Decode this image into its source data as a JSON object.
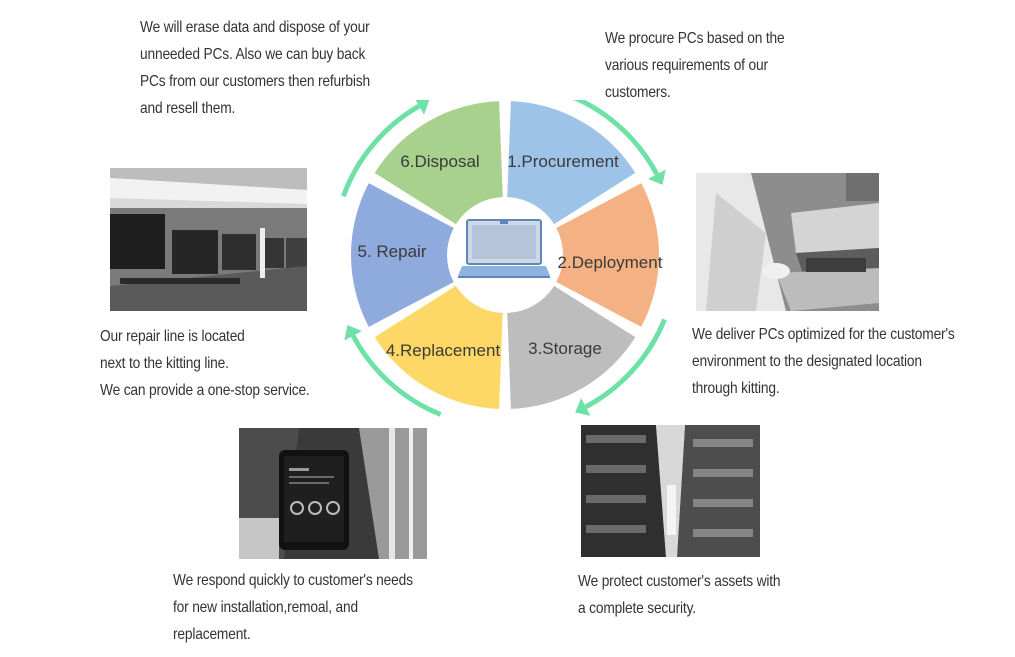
{
  "cycle": {
    "segments": [
      {
        "label": "1.Procurement",
        "color": "#9ec3e8"
      },
      {
        "label": "2.Deployment",
        "color": "#f4b183"
      },
      {
        "label": "3.Storage",
        "color": "#bdbdbd"
      },
      {
        "label": "4.Replacement",
        "color": "#fed866"
      },
      {
        "label": "5. Repair",
        "color": "#8faadc"
      },
      {
        "label": "6.Disposal",
        "color": "#a9d18e"
      }
    ],
    "arrow_color": "#6fe0a8",
    "center_icon": "laptop-icon"
  },
  "descriptions": {
    "disposal": [
      "We will erase data and dispose of your",
      "unneeded PCs. Also we can buy back",
      "PCs from our customers then refurbish",
      "and resell them."
    ],
    "procurement": [
      "We procure PCs based on the",
      "various requirements of our",
      "customers."
    ],
    "repair": [
      "Our repair line is located",
      "next to the kitting line.",
      "We can provide a one-stop service."
    ],
    "deployment": [
      "We deliver PCs optimized for the customer's",
      "environment to the designated location",
      "through kitting."
    ],
    "replacement": [
      "We respond quickly to customer's needs",
      "for new installation,remoal, and",
      "replacement."
    ],
    "storage": [
      "We protect customer's assets  with",
      "a complete security."
    ]
  }
}
